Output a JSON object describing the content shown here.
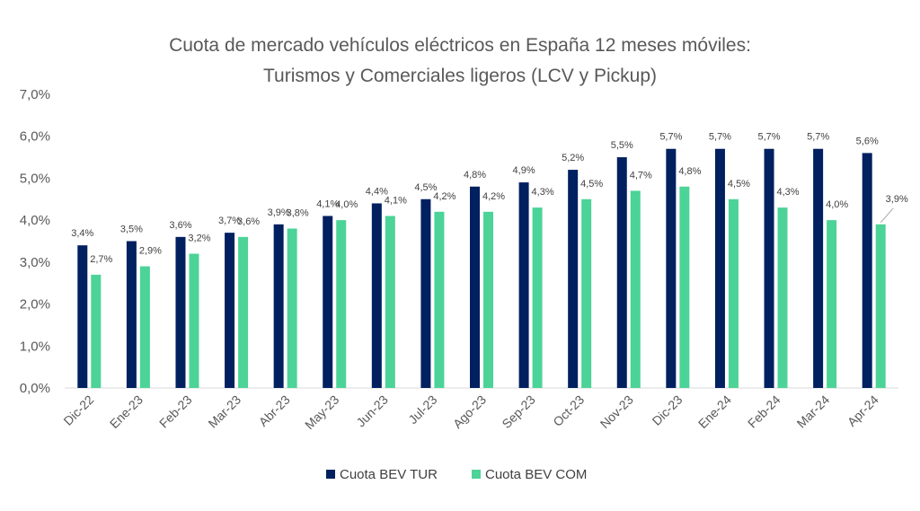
{
  "chart_data": {
    "type": "bar",
    "title": [
      "Cuota de mercado vehículos eléctricos en España 12 meses móviles:",
      "Turismos y Comerciales ligeros (LCV y Pickup)"
    ],
    "xlabel": "",
    "ylabel": "",
    "ylim": [
      0,
      7
    ],
    "yticks": [
      "0,0%",
      "1,0%",
      "2,0%",
      "3,0%",
      "4,0%",
      "5,0%",
      "6,0%",
      "7,0%"
    ],
    "grid": false,
    "legend_position": "bottom",
    "categories": [
      "Dic-22",
      "Ene-23",
      "Feb-23",
      "Mar-23",
      "Abr-23",
      "May-23",
      "Jun-23",
      "Jul-23",
      "Ago-23",
      "Sep-23",
      "Oct-23",
      "Nov-23",
      "Dic-23",
      "Ene-24",
      "Feb-24",
      "Mar-24",
      "Apr-24"
    ],
    "series": [
      {
        "name": "Cuota BEV TUR",
        "color": "#002060",
        "values": [
          3.4,
          3.5,
          3.6,
          3.7,
          3.9,
          4.1,
          4.4,
          4.5,
          4.8,
          4.9,
          5.2,
          5.5,
          5.7,
          5.7,
          5.7,
          5.7,
          5.6
        ],
        "labels": [
          "3,4%",
          "3,5%",
          "3,6%",
          "3,7%",
          "3,9%",
          "4,1%",
          "4,4%",
          "4,5%",
          "4,8%",
          "4,9%",
          "5,2%",
          "5,5%",
          "5,7%",
          "5,7%",
          "5,7%",
          "5,7%",
          "5,6%"
        ]
      },
      {
        "name": "Cuota BEV COM",
        "color": "#4CD397",
        "values": [
          2.7,
          2.9,
          3.2,
          3.6,
          3.8,
          4.0,
          4.1,
          4.2,
          4.2,
          4.3,
          4.5,
          4.7,
          4.8,
          4.5,
          4.3,
          4.0,
          3.9
        ],
        "labels": [
          "2,7%",
          "2,9%",
          "3,2%",
          "3,6%",
          "3,8%",
          "4,0%",
          "4,1%",
          "4,2%",
          "4,2%",
          "4,3%",
          "4,5%",
          "4,7%",
          "4,8%",
          "4,5%",
          "4,3%",
          "4,0%",
          "3,9%"
        ]
      }
    ]
  }
}
